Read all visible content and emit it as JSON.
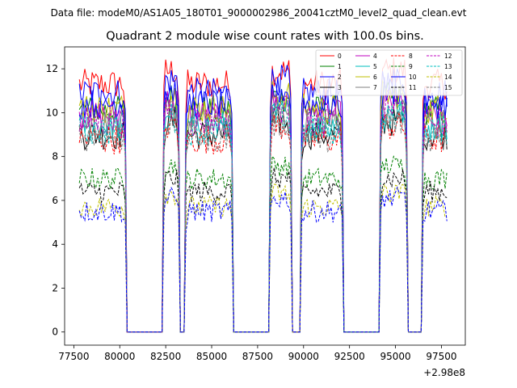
{
  "chart_data": {
    "type": "line",
    "suptitle": "Data file: modeM0/AS1A05_180T01_9000002986_20041cztM0_level2_quad_clean.evt",
    "title": "Quadrant 2 module wise count rates with 100.0s bins.",
    "xlabel": "",
    "ylabel": "",
    "x_offset_label": "+2.98e8",
    "xlim": [
      77000,
      98800
    ],
    "ylim": [
      -0.6,
      13.0
    ],
    "x_ticks": [
      77500,
      80000,
      82500,
      85000,
      87500,
      90000,
      92500,
      95000,
      97500
    ],
    "x_tick_labels": [
      "77500",
      "80000",
      "82500",
      "85000",
      "87500",
      "90000",
      "92500",
      "95000",
      "97500"
    ],
    "y_ticks": [
      0,
      2,
      4,
      6,
      8,
      10,
      12
    ],
    "y_tick_labels": [
      "0",
      "2",
      "4",
      "6",
      "8",
      "10",
      "12"
    ],
    "bin_seconds": 100,
    "x_start": 77800,
    "x_step": 100,
    "x_end": 97800,
    "segments": [
      {
        "start": 77800,
        "end": 80300
      },
      {
        "start": 82400,
        "end": 83200
      },
      {
        "start": 83600,
        "end": 86100
      },
      {
        "start": 88200,
        "end": 89300
      },
      {
        "start": 89900,
        "end": 92100
      },
      {
        "start": 94200,
        "end": 95600
      },
      {
        "start": 96500,
        "end": 97800
      }
    ],
    "legend_location": "upper-right",
    "series": [
      {
        "name": "0",
        "color": "#ff0000",
        "dash": "solid",
        "level": 11.3
      },
      {
        "name": "1",
        "color": "#008000",
        "dash": "solid",
        "level": 10.1
      },
      {
        "name": "2",
        "color": "#0000ff",
        "dash": "solid",
        "level": 10.9
      },
      {
        "name": "3",
        "color": "#000000",
        "dash": "solid",
        "level": 9.0
      },
      {
        "name": "4",
        "color": "#bf00bf",
        "dash": "solid",
        "level": 9.9
      },
      {
        "name": "5",
        "color": "#00bfbf",
        "dash": "solid",
        "level": 9.4
      },
      {
        "name": "6",
        "color": "#bfbf00",
        "dash": "solid",
        "level": 10.2
      },
      {
        "name": "7",
        "color": "#808080",
        "dash": "solid",
        "level": 9.5
      },
      {
        "name": "8",
        "color": "#ff0000",
        "dash": "dashed",
        "level": 8.8
      },
      {
        "name": "9",
        "color": "#008000",
        "dash": "dashed",
        "level": 7.0
      },
      {
        "name": "10",
        "color": "#0000ff",
        "dash": "solid",
        "level": 10.4
      },
      {
        "name": "11",
        "color": "#000000",
        "dash": "dashed",
        "level": 6.4
      },
      {
        "name": "12",
        "color": "#bf00bf",
        "dash": "dashed",
        "level": 9.6
      },
      {
        "name": "13",
        "color": "#00bfbf",
        "dash": "dashed",
        "level": 9.2
      },
      {
        "name": "14",
        "color": "#bfbf00",
        "dash": "dashed",
        "level": 5.7
      },
      {
        "name": "15",
        "color": "#808080",
        "dash": "dashed",
        "level": 8.9
      },
      {
        "name": "",
        "color": "#0000ff",
        "dash": "dashed",
        "level": 5.5
      }
    ]
  }
}
